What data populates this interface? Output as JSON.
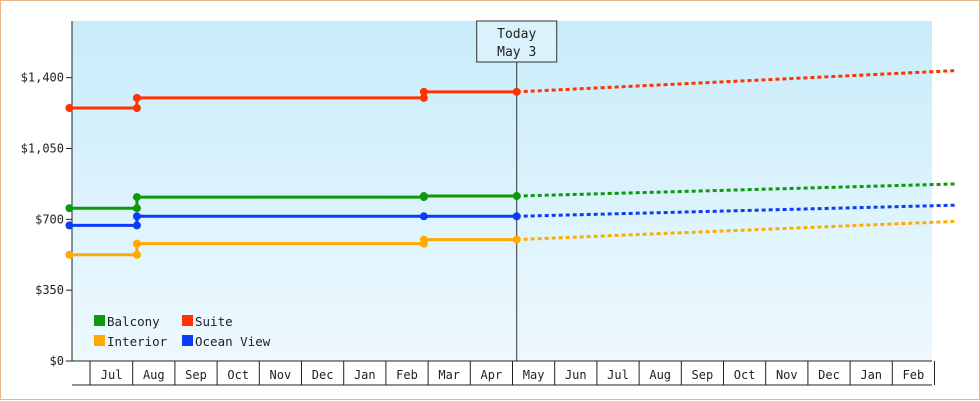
{
  "chart_data": {
    "type": "line",
    "title": "",
    "xlabel": "",
    "ylabel": "",
    "ylim": [
      0,
      1680
    ],
    "y_ticks": [
      0,
      350,
      700,
      1050,
      1400
    ],
    "y_tick_labels": [
      "$0",
      "$350",
      "$700",
      "$1,050",
      "$1,400"
    ],
    "x_tick_labels": [
      "Jul",
      "Aug",
      "Sep",
      "Oct",
      "Nov",
      "Dec",
      "Jan",
      "Feb",
      "Mar",
      "Apr",
      "May",
      "Jun",
      "Jul",
      "Aug",
      "Sep",
      "Oct",
      "Nov",
      "Dec",
      "Jan",
      "Feb"
    ],
    "x_range_months": [
      0,
      20.3
    ],
    "today": {
      "line1": "Today",
      "line2": "May 3",
      "x": 10.1
    },
    "background": {
      "top": "#c8ecfa",
      "bottom": "#eef9fe"
    },
    "legend_position": "bottom-left",
    "series": [
      {
        "name": "Balcony",
        "color": "#0a9a0a",
        "history": [
          [
            -0.5,
            755
          ],
          [
            1.1,
            755
          ],
          [
            1.1,
            810
          ],
          [
            7.9,
            810
          ],
          [
            7.9,
            815
          ],
          [
            10.1,
            815
          ]
        ],
        "markers": [
          [
            -0.5,
            755
          ],
          [
            1.1,
            755
          ],
          [
            1.1,
            810
          ],
          [
            7.9,
            810
          ],
          [
            7.9,
            815
          ],
          [
            10.1,
            815
          ]
        ],
        "forecast": [
          [
            10.1,
            815
          ],
          [
            20.5,
            875
          ]
        ]
      },
      {
        "name": "Suite",
        "color": "#ff3300",
        "history": [
          [
            -0.5,
            1250
          ],
          [
            1.1,
            1250
          ],
          [
            1.1,
            1300
          ],
          [
            7.9,
            1300
          ],
          [
            7.9,
            1330
          ],
          [
            10.1,
            1330
          ]
        ],
        "markers": [
          [
            -0.5,
            1250
          ],
          [
            1.1,
            1250
          ],
          [
            1.1,
            1300
          ],
          [
            7.9,
            1300
          ],
          [
            7.9,
            1330
          ],
          [
            10.1,
            1330
          ]
        ],
        "forecast": [
          [
            10.1,
            1330
          ],
          [
            20.5,
            1435
          ]
        ]
      },
      {
        "name": "Interior",
        "color": "#ffaa00",
        "history": [
          [
            -0.5,
            525
          ],
          [
            1.1,
            525
          ],
          [
            1.1,
            580
          ],
          [
            7.9,
            580
          ],
          [
            7.9,
            600
          ],
          [
            10.1,
            600
          ]
        ],
        "markers": [
          [
            -0.5,
            525
          ],
          [
            1.1,
            525
          ],
          [
            1.1,
            580
          ],
          [
            7.9,
            580
          ],
          [
            7.9,
            600
          ],
          [
            10.1,
            600
          ]
        ],
        "forecast": [
          [
            10.1,
            600
          ],
          [
            20.5,
            690
          ]
        ]
      },
      {
        "name": "Ocean View",
        "color": "#0a3ef5",
        "history": [
          [
            -0.5,
            670
          ],
          [
            1.1,
            670
          ],
          [
            1.1,
            715
          ],
          [
            7.9,
            715
          ],
          [
            10.1,
            715
          ]
        ],
        "markers": [
          [
            -0.5,
            670
          ],
          [
            1.1,
            670
          ],
          [
            1.1,
            715
          ],
          [
            7.9,
            715
          ],
          [
            10.1,
            715
          ]
        ],
        "forecast": [
          [
            10.1,
            715
          ],
          [
            20.5,
            770
          ]
        ]
      }
    ]
  }
}
